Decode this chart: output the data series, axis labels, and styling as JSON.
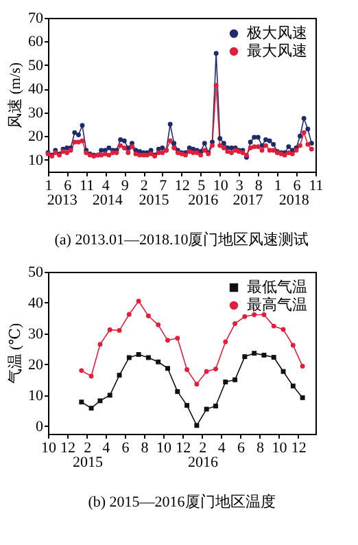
{
  "chart_data": [
    {
      "type": "line",
      "title": "(a) 2013.01—2018.10厦门地区风速测试",
      "ylabel": "风速 (m/s)",
      "x": [
        "2013-01",
        "2013-02",
        "2013-03",
        "2013-04",
        "2013-05",
        "2013-06",
        "2013-07",
        "2013-08",
        "2013-09",
        "2013-10",
        "2013-11",
        "2013-12",
        "2014-01",
        "2014-02",
        "2014-03",
        "2014-04",
        "2014-05",
        "2014-06",
        "2014-07",
        "2014-08",
        "2014-09",
        "2014-10",
        "2014-11",
        "2014-12",
        "2015-01",
        "2015-02",
        "2015-03",
        "2015-04",
        "2015-05",
        "2015-06",
        "2015-07",
        "2015-08",
        "2015-09",
        "2015-10",
        "2015-11",
        "2015-12",
        "2016-01",
        "2016-02",
        "2016-03",
        "2016-04",
        "2016-05",
        "2016-06",
        "2016-07",
        "2016-08",
        "2016-09",
        "2016-10",
        "2016-11",
        "2016-12",
        "2017-01",
        "2017-02",
        "2017-03",
        "2017-04",
        "2017-05",
        "2017-06",
        "2017-07",
        "2017-08",
        "2017-09",
        "2017-10",
        "2017-11",
        "2017-12",
        "2018-01",
        "2018-02",
        "2018-03",
        "2018-04",
        "2018-05",
        "2018-06",
        "2018-07",
        "2018-08",
        "2018-09",
        "2018-10"
      ],
      "series": [
        {
          "name": "极大风速",
          "color": "#1f2a6b",
          "marker": "circle",
          "values": [
            13,
            12,
            14,
            12.5,
            14.5,
            15,
            15,
            21.5,
            20.5,
            24.5,
            14,
            12.5,
            12,
            12,
            14,
            14,
            15,
            14,
            14,
            18.5,
            18,
            15,
            17,
            14,
            13.5,
            13,
            13,
            14,
            12,
            14.5,
            15,
            14,
            25,
            17,
            14,
            13,
            13,
            15,
            14.5,
            14,
            13.5,
            17,
            13,
            17.5,
            55,
            19,
            17,
            15,
            15,
            15,
            14,
            14,
            11,
            17.5,
            19.5,
            19.5,
            16,
            18.5,
            18,
            16.5,
            13.5,
            13,
            13,
            15.5,
            14,
            15,
            20,
            27.5,
            23,
            17
          ]
        },
        {
          "name": "最大风速",
          "color": "#e0203a",
          "marker": "circle",
          "values": [
            12.5,
            11.5,
            13,
            12,
            13.5,
            13,
            14,
            17.5,
            17.5,
            18,
            13,
            12,
            11.5,
            12,
            12,
            12.5,
            12,
            13,
            13,
            16,
            15,
            13,
            15.5,
            12.5,
            12,
            12,
            12,
            12.5,
            11.5,
            13,
            13,
            14,
            18,
            15,
            13,
            12.5,
            12,
            13.5,
            13,
            13,
            12,
            14,
            12.5,
            16,
            41.5,
            16,
            15,
            13.5,
            13,
            14,
            13.5,
            13,
            12,
            15,
            15.5,
            15.5,
            14,
            16,
            14,
            14,
            13,
            12.5,
            12,
            13,
            12.5,
            14,
            16,
            21.5,
            16.5,
            14.5
          ]
        }
      ],
      "xlim": [
        "2013-01",
        "2018-11"
      ],
      "xticks": [
        {
          "value": "2013-01",
          "label": "1"
        },
        {
          "value": "2013-06",
          "label": "6"
        },
        {
          "value": "2013-11",
          "label": "11"
        },
        {
          "value": "2014-04",
          "label": "4"
        },
        {
          "value": "2014-09",
          "label": "9"
        },
        {
          "value": "2015-02",
          "label": "2"
        },
        {
          "value": "2015-07",
          "label": "7"
        },
        {
          "value": "2015-12",
          "label": "12"
        },
        {
          "value": "2016-05",
          "label": "5"
        },
        {
          "value": "2016-10",
          "label": "10"
        },
        {
          "value": "2017-03",
          "label": "3"
        },
        {
          "value": "2017-08",
          "label": "8"
        },
        {
          "value": "2018-01",
          "label": "1"
        },
        {
          "value": "2018-06",
          "label": "6"
        },
        {
          "value": "2018-11",
          "label": "11"
        }
      ],
      "x2lim": [
        "2013-01",
        "2018-11"
      ],
      "x2ticks": [
        {
          "value": "2013-04-25",
          "label": "2013"
        },
        {
          "value": "2014-04-20",
          "label": "2014"
        },
        {
          "value": "2015-04-25",
          "label": "2015"
        },
        {
          "value": "2016-05-20",
          "label": "2016"
        },
        {
          "value": "2017-05-12",
          "label": "2017"
        },
        {
          "value": "2018-05-15",
          "label": "2018"
        }
      ],
      "ylim": [
        5,
        70
      ],
      "yticks": [
        10,
        20,
        30,
        40,
        50,
        60,
        70
      ],
      "legend": "top right",
      "line_style": "solid"
    },
    {
      "type": "line",
      "title": "(b) 2015—2016厦门地区温度",
      "ylabel": "气温 (℃)",
      "x": [
        "2015-01-15",
        "2015-02-15",
        "2015-03-15",
        "2015-04-15",
        "2015-05-15",
        "2015-06-15",
        "2015-07-15",
        "2015-08-15",
        "2015-09-15",
        "2015-10-15",
        "2015-11-15",
        "2015-12-15",
        "2016-01-15",
        "2016-02-15",
        "2016-03-15",
        "2016-04-15",
        "2016-05-15",
        "2016-06-15",
        "2016-07-15",
        "2016-08-15",
        "2016-09-15",
        "2016-10-15",
        "2016-11-15",
        "2016-12-15"
      ],
      "series": [
        {
          "name": "最低气温",
          "color": "#111111",
          "marker": "square",
          "values": [
            7.8,
            5.8,
            8.2,
            10,
            16.5,
            22.2,
            23.2,
            22.2,
            20.8,
            18.7,
            11.2,
            6.7,
            0.2,
            5.5,
            6.5,
            14.3,
            15,
            22.5,
            23.6,
            23,
            22.3,
            17.7,
            13,
            9.2
          ]
        },
        {
          "name": "最高气温",
          "color": "#e0203a",
          "marker": "circle",
          "values": [
            18,
            16.2,
            26.5,
            31.2,
            31,
            36.2,
            40.5,
            35.7,
            32.8,
            27.8,
            28.5,
            18.3,
            13.6,
            17.7,
            18.5,
            27.3,
            33.2,
            35.5,
            36.1,
            36.1,
            32.4,
            31.3,
            26.2,
            19.4
          ]
        }
      ],
      "xlim": [
        "2014-10-01",
        "2017-01-25"
      ],
      "xticks": [
        {
          "value": "2014-10",
          "label": "10"
        },
        {
          "value": "2014-12",
          "label": "12"
        },
        {
          "value": "2015-02",
          "label": "2"
        },
        {
          "value": "2015-04",
          "label": "4"
        },
        {
          "value": "2015-06",
          "label": "6"
        },
        {
          "value": "2015-08",
          "label": "8"
        },
        {
          "value": "2015-10",
          "label": "10"
        },
        {
          "value": "2015-12",
          "label": "12"
        },
        {
          "value": "2016-02",
          "label": "2"
        },
        {
          "value": "2016-04",
          "label": "4"
        },
        {
          "value": "2016-06",
          "label": "6"
        },
        {
          "value": "2016-08",
          "label": "8"
        },
        {
          "value": "2016-10",
          "label": "10"
        },
        {
          "value": "2016-12",
          "label": "12"
        }
      ],
      "x2lim": [
        "2014-10-01",
        "2017-01-25"
      ],
      "x2ticks": [
        {
          "value": "2015-02-04",
          "label": "2015"
        },
        {
          "value": "2016-02-04",
          "label": "2016"
        }
      ],
      "ylim": [
        -2.5,
        50
      ],
      "yticks": [
        0,
        10,
        20,
        30,
        40,
        50
      ],
      "legend": "top right",
      "line_style": "solid"
    }
  ]
}
